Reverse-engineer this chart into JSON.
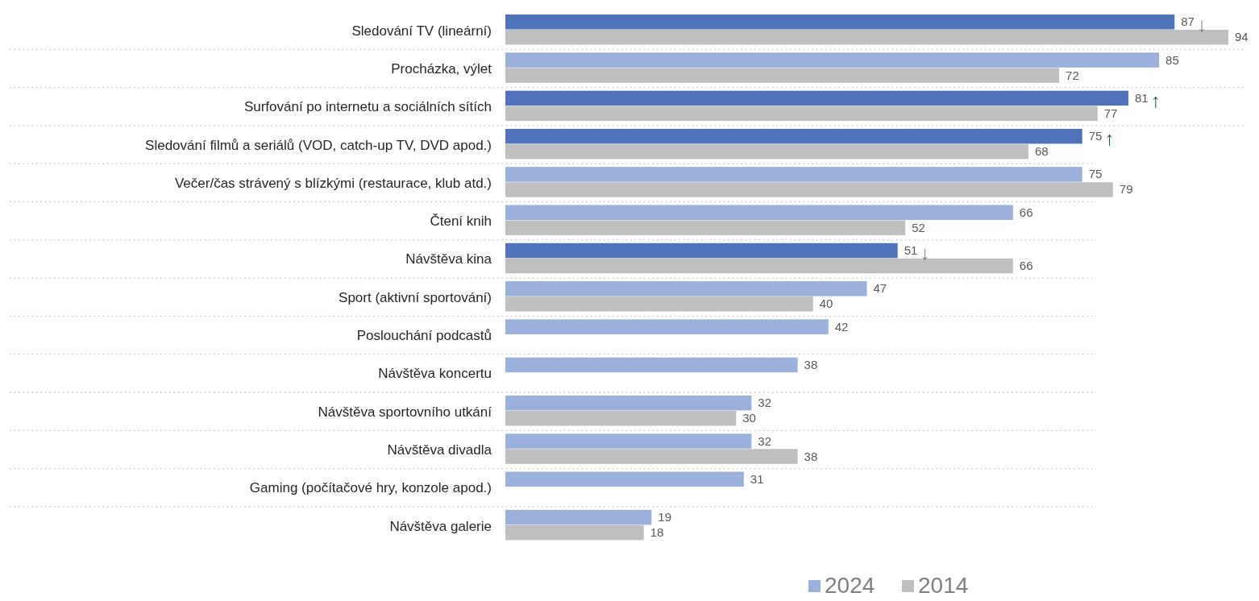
{
  "chart_data": {
    "type": "bar",
    "orientation": "horizontal",
    "categories": [
      "Sledování TV (lineární)",
      "Procházka, výlet",
      "Surfování po internetu a sociálních sítích",
      "Sledování filmů a seriálů (VOD, catch-up TV, DVD apod.)",
      "Večer/čas strávený s blízkými (restaurace, klub atd.)",
      "Čtení knih",
      "Návštěva kina",
      "Sport (aktivní sportování)",
      "Poslouchání podcastů",
      "Návštěva koncertu",
      "Návštěva sportovního utkání",
      "Návštěva divadla",
      "Gaming (počítačové hry, konzole apod.)",
      "Návštěva galerie"
    ],
    "series": [
      {
        "name": "2024",
        "color": "#9bb1db",
        "colors": [
          "#4f74bc",
          "#9bb1db",
          "#4f74bc",
          "#4f74bc",
          "#9bb1db",
          "#9bb1db",
          "#4f74bc",
          "#9bb1db",
          "#9bb1db",
          "#9bb1db",
          "#9bb1db",
          "#9bb1db",
          "#9bb1db",
          "#9bb1db"
        ],
        "values": [
          87,
          85,
          81,
          75,
          75,
          66,
          51,
          47,
          42,
          38,
          32,
          32,
          31,
          19
        ]
      },
      {
        "name": "2014",
        "color": "#bfbfbf",
        "values": [
          94,
          72,
          77,
          68,
          79,
          52,
          66,
          40,
          null,
          null,
          30,
          38,
          null,
          18
        ]
      }
    ],
    "data_labels": true,
    "grid": "y",
    "legend": "bottom",
    "annotations": [
      {
        "text": "↓",
        "x": 87,
        "y": "Sledování TV (lineární)"
      },
      {
        "text": "↑",
        "x": 81,
        "y": "Surfování po internetu a sociálních sítích"
      },
      {
        "text": "↑",
        "x": 75,
        "y": "Sledování filmů a seriálů (VOD, catch-up TV, DVD apod.)"
      },
      {
        "text": "↓",
        "x": 51,
        "y": "Návštěva kina"
      }
    ]
  }
}
